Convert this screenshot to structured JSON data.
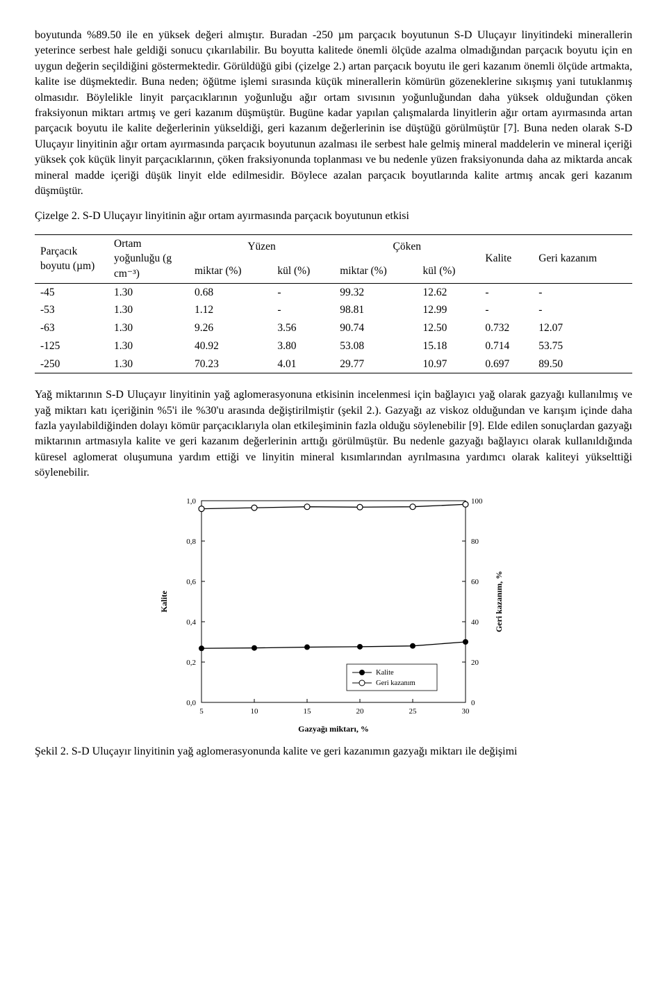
{
  "para1": "boyutunda %89.50 ile en yüksek değeri almıştır. Buradan -250 µm parçacık boyutunun S-D Uluçayır linyitindeki minerallerin yeterince serbest hale geldiği sonucu çıkarılabilir. Bu boyutta kalitede önemli ölçüde azalma olmadığından parçacık boyutu için en uygun değerin seçildiğini göstermektedir. Görüldüğü gibi (çizelge 2.) artan parçacık boyutu ile geri kazanım önemli ölçüde artmakta, kalite ise düşmektedir. Buna neden; öğütme işlemi sırasında küçük minerallerin kömürün gözeneklerine sıkışmış yani tutuklanmış olmasıdır. Böylelikle linyit parçacıklarının yoğunluğu ağır ortam sıvısının yoğunluğundan daha yüksek olduğundan çöken fraksiyonun miktarı artmış ve geri kazanım düşmüştür. Bugüne kadar yapılan çalışmalarda linyitlerin ağır ortam ayırmasında artan parçacık boyutu ile kalite değerlerinin yükseldiği, geri kazanım değerlerinin ise düştüğü görülmüştür [7]. Buna neden olarak S-D Uluçayır linyitinin ağır ortam ayırmasında parçacık boyutunun azalması ile serbest hale gelmiş mineral maddelerin ve mineral içeriği yüksek çok küçük linyit parçacıklarının, çöken fraksiyonunda toplanması ve bu nedenle yüzen fraksiyonunda daha az miktarda ancak mineral madde içeriği düşük linyit elde edilmesidir. Böylece azalan parçacık boyutlarında kalite artmış ancak geri kazanım düşmüştür.",
  "tableCaption": "Çizelge 2. S-D Uluçayır linyitinin ağır ortam ayırmasında parçacık boyutunun etkisi",
  "tableHeaders": {
    "particle": "Parçacık boyutu (µm)",
    "density": "Ortam yoğunluğu (g cm⁻³)",
    "floating": "Yüzen",
    "sinking": "Çöken",
    "quality": "Kalite",
    "recovery": "Geri kazanım",
    "amount": "miktar (%)",
    "ash": "kül (%)"
  },
  "tableRows": [
    {
      "p": "-45",
      "d": "1.30",
      "fm": "0.68",
      "fa": "-",
      "sm": "99.32",
      "sa": "12.62",
      "q": "-",
      "r": "-"
    },
    {
      "p": "-53",
      "d": "1.30",
      "fm": "1.12",
      "fa": "-",
      "sm": "98.81",
      "sa": "12.99",
      "q": "-",
      "r": "-"
    },
    {
      "p": "-63",
      "d": "1.30",
      "fm": "9.26",
      "fa": "3.56",
      "sm": "90.74",
      "sa": "12.50",
      "q": "0.732",
      "r": "12.07"
    },
    {
      "p": "-125",
      "d": "1.30",
      "fm": "40.92",
      "fa": "3.80",
      "sm": "53.08",
      "sa": "15.18",
      "q": "0.714",
      "r": "53.75"
    },
    {
      "p": "-250",
      "d": "1.30",
      "fm": "70.23",
      "fa": "4.01",
      "sm": "29.77",
      "sa": "10.97",
      "q": "0.697",
      "r": "89.50"
    }
  ],
  "para2": "Yağ miktarının  S-D Uluçayır linyitinin yağ aglomerasyonuna etkisinin incelenmesi için bağlayıcı yağ olarak gazyağı kullanılmış ve yağ miktarı katı içeriğinin %5'i ile %30'u arasında değiştirilmiştir (şekil 2.). Gazyağı az viskoz olduğundan ve karışım içinde daha fazla yayılabildiğinden dolayı kömür parçacıklarıyla olan etkileşiminin fazla olduğu söylenebilir [9]. Elde edilen sonuçlardan gazyağı miktarının artmasıyla kalite ve geri kazanım değerlerinin arttığı görülmüştür. Bu nedenle gazyağı bağlayıcı olarak kullanıldığında küresel aglomerat oluşumuna yardım ettiği ve linyitin mineral kısımlarından ayrılmasına yardımcı olarak kaliteyi yükselttiği söylenebilir.",
  "chart": {
    "type": "dual-axis-line",
    "x": [
      5,
      10,
      15,
      20,
      25,
      30
    ],
    "qualityY": [
      0.268,
      0.27,
      0.274,
      0.276,
      0.28,
      0.3
    ],
    "recoveryY": [
      96.0,
      96.5,
      97.0,
      96.8,
      97.0,
      98.2
    ],
    "leftAxis": {
      "label": "Kalite",
      "min": 0.0,
      "max": 1.0,
      "step": 0.2,
      "ticks": [
        "0,0",
        "0,2",
        "0,4",
        "0,6",
        "0,8",
        "1,0"
      ]
    },
    "rightAxis": {
      "label": "Geri kazanım, %",
      "min": 0,
      "max": 100,
      "step": 20,
      "ticks": [
        "0",
        "20",
        "40",
        "60",
        "80",
        "100"
      ]
    },
    "xAxis": {
      "label": "Gazyağı miktarı, %",
      "ticks": [
        "5",
        "10",
        "15",
        "20",
        "25",
        "30"
      ]
    },
    "legend": {
      "kalite": "Kalite",
      "geri": "Geri kazanım"
    },
    "colors": {
      "line": "#000000",
      "background": "#ffffff",
      "axis": "#000000",
      "tickFont": 10
    },
    "markerSize": 4
  },
  "figCaption": "Şekil 2. S-D Uluçayır linyitinin yağ aglomerasyonunda kalite ve geri kazanımın gazyağı miktarı ile değişimi"
}
